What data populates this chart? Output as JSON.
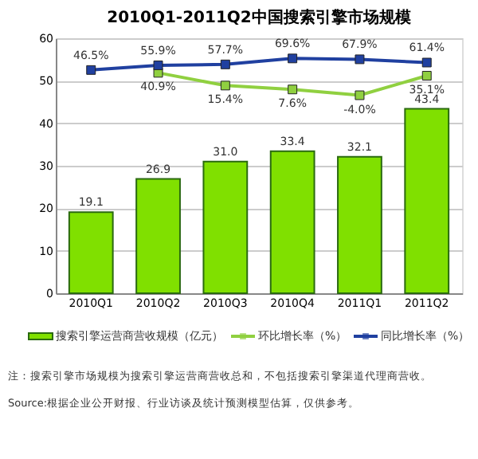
{
  "chart_data": {
    "type": "bar",
    "title": "2010Q1-2011Q2中国搜索引擎市场规模",
    "categories": [
      "2010Q1",
      "2010Q2",
      "2010Q3",
      "2010Q4",
      "2011Q1",
      "2011Q2"
    ],
    "series": [
      {
        "name": "搜索引擎运营商营收规模（亿元）",
        "color": "#80e000",
        "values": [
          19.1,
          26.9,
          31.0,
          33.4,
          32.1,
          43.4
        ],
        "value_labels": [
          "19.1",
          "26.9",
          "31.0",
          "33.4",
          "32.1",
          "43.4"
        ]
      },
      {
        "name": "环比增长率（%）",
        "type": "line",
        "axis": "y2",
        "color": "#90d040",
        "values": [
          null,
          40.9,
          15.4,
          7.6,
          -4.0,
          35.1
        ],
        "value_labels": [
          null,
          "40.9%",
          "15.4%",
          "7.6%",
          "-4.0%",
          "35.1%"
        ]
      },
      {
        "name": "同比增长率（%）",
        "type": "line",
        "axis": "y2",
        "color": "#2040a0",
        "values": [
          46.5,
          55.9,
          57.7,
          69.6,
          67.9,
          61.4
        ],
        "value_labels": [
          "46.5%",
          "55.9%",
          "57.7%",
          "69.6%",
          "67.9%",
          "61.4%"
        ]
      }
    ],
    "ylim": [
      0,
      60
    ],
    "yticks": [
      0,
      10,
      20,
      30,
      40,
      50,
      60
    ],
    "y2lim": [
      -400,
      110
    ],
    "grid": "y",
    "legend": "bottom",
    "marker": "square",
    "annotations": [
      "注：搜索引擎市场规模为搜索引擎运营商营收总和，不包括搜索引擎渠道代理商营收。",
      "Source:根据企业公开财报、行业访谈及统计预测模型估算，仅供参考。"
    ]
  }
}
